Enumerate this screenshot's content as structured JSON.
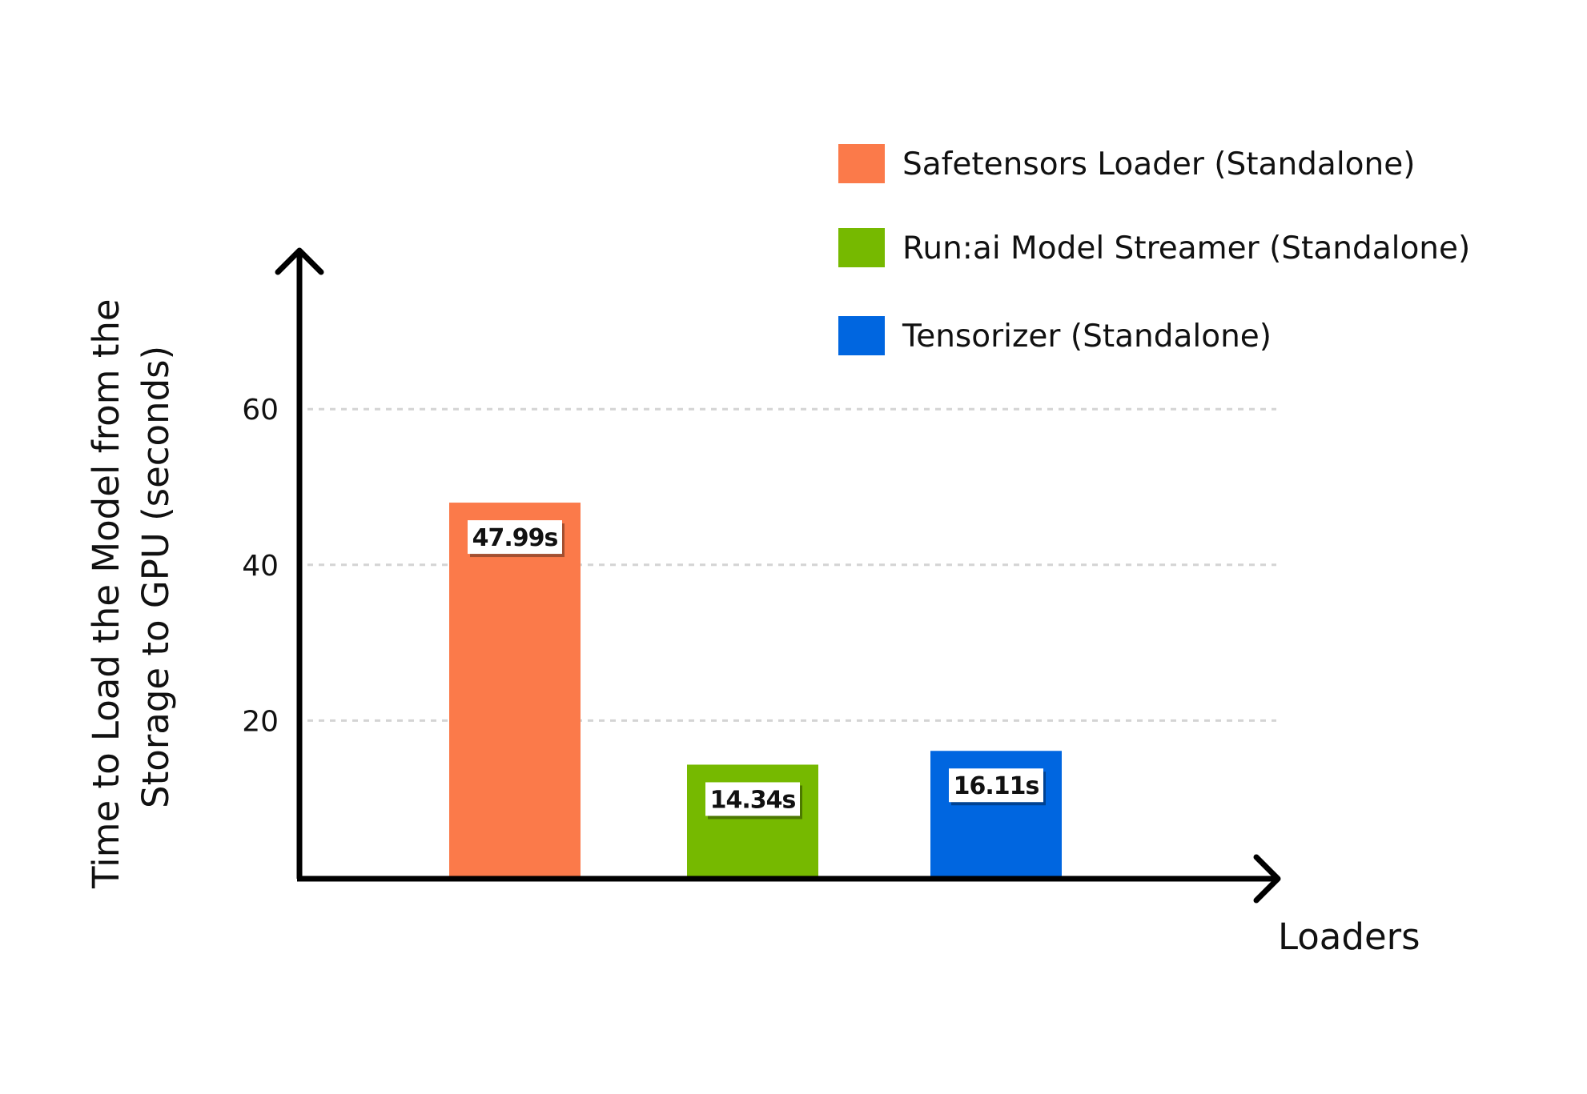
{
  "chart_data": {
    "type": "bar",
    "title": "",
    "xlabel": "Loaders",
    "ylabel": "Time to Load the Model  from the Storage to GPU (seconds)",
    "ylabel_lines": [
      "Time to Load the Model  from the",
      "Storage to GPU (seconds)"
    ],
    "ylim": [
      0,
      80
    ],
    "yticks": [
      20,
      40,
      60
    ],
    "grid": true,
    "legend_position": "top-right",
    "categories": [
      "Safetensors Loader (Standalone)",
      "Run:ai Model Streamer (Standalone)",
      "Tensorizer (Standalone)"
    ],
    "values": [
      47.99,
      14.34,
      16.11
    ],
    "data_labels": [
      "47.99s",
      "14.34s",
      "16.11s"
    ],
    "colors": [
      "#fb7a4a",
      "#76b900",
      "#0066e0"
    ]
  }
}
